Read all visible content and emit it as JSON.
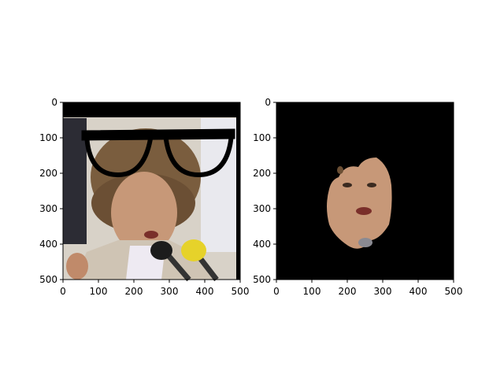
{
  "chart_data": [
    {
      "type": "image",
      "title": "",
      "xlabel": "",
      "ylabel": "",
      "xlim": [
        0,
        500
      ],
      "ylim": [
        500,
        0
      ],
      "x_ticks": [
        0,
        100,
        200,
        300,
        400,
        500
      ],
      "y_ticks": [
        0,
        100,
        200,
        300,
        400,
        500
      ],
      "x_tick_labels": [
        "0",
        "100",
        "200",
        "300",
        "400",
        "500"
      ],
      "y_tick_labels": [
        "0",
        "100",
        "200",
        "300",
        "400",
        "500"
      ],
      "content": "photo-with-glasses-overlay",
      "grid": false
    },
    {
      "type": "image",
      "title": "",
      "xlabel": "",
      "ylabel": "",
      "xlim": [
        0,
        500
      ],
      "ylim": [
        500,
        0
      ],
      "x_ticks": [
        0,
        100,
        200,
        300,
        400,
        500
      ],
      "y_ticks": [
        0,
        100,
        200,
        300,
        400,
        500
      ],
      "x_tick_labels": [
        "0",
        "100",
        "200",
        "300",
        "400",
        "500"
      ],
      "y_tick_labels": [
        "0",
        "100",
        "200",
        "300",
        "400",
        "500"
      ],
      "content": "segmented-face-mask",
      "grid": false
    }
  ],
  "colors": {
    "background": "#ffffff",
    "mask_background": "#000000",
    "axis": "#000000"
  }
}
